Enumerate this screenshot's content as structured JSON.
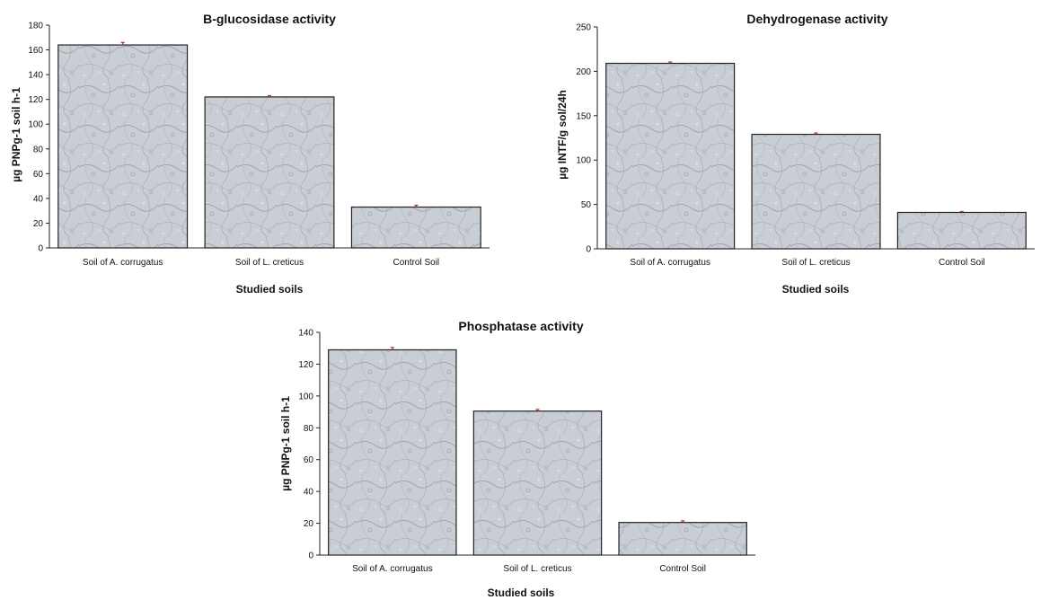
{
  "chart_data": [
    {
      "type": "bar",
      "title": "B-glucosidase activity",
      "xlabel": "Studied soils",
      "ylabel": "µg PNPg-1 soil h-1",
      "categories": [
        "Soil of A. corrugatus",
        "Soil of L. creticus",
        "Control Soil"
      ],
      "values": [
        164,
        122,
        33
      ],
      "errors": [
        2,
        1,
        1.5
      ],
      "ylim": [
        0,
        180
      ],
      "yticks": [
        "0",
        "20",
        "40",
        "60",
        "80",
        "100",
        "120",
        "140",
        "160",
        "180"
      ],
      "grid": false,
      "legend": "none"
    },
    {
      "type": "bar",
      "title": "Dehydrogenase activity",
      "xlabel": "Studied soils",
      "ylabel": "µg INTF/g sol/24h",
      "categories": [
        "Soil of A. corrugatus",
        "Soil of L. creticus",
        "Control Soil"
      ],
      "values": [
        209,
        129,
        41
      ],
      "errors": [
        1.5,
        1.5,
        1
      ],
      "ylim": [
        0,
        250
      ],
      "yticks": [
        "0",
        "50",
        "100",
        "150",
        "200",
        "250"
      ],
      "grid": false,
      "legend": "none"
    },
    {
      "type": "bar",
      "title": "Phosphatase activity",
      "xlabel": "Studied soils",
      "ylabel": "µg PNPg-1 soil h-1",
      "categories": [
        "Soil of A. corrugatus",
        "Soil of L. creticus",
        "Control Soil"
      ],
      "values": [
        129,
        90.5,
        20.5
      ],
      "errors": [
        1.5,
        1,
        1
      ],
      "ylim": [
        0,
        140
      ],
      "yticks": [
        "0",
        "20",
        "40",
        "60",
        "80",
        "100",
        "120",
        "140"
      ],
      "grid": false,
      "legend": "none"
    }
  ],
  "colors": {
    "bar_fill": "#c9cdd4",
    "bar_texture": "#9aa1ab",
    "bar_stroke": "#222222",
    "error_bar": "#cc2222",
    "axis": "#222222"
  }
}
